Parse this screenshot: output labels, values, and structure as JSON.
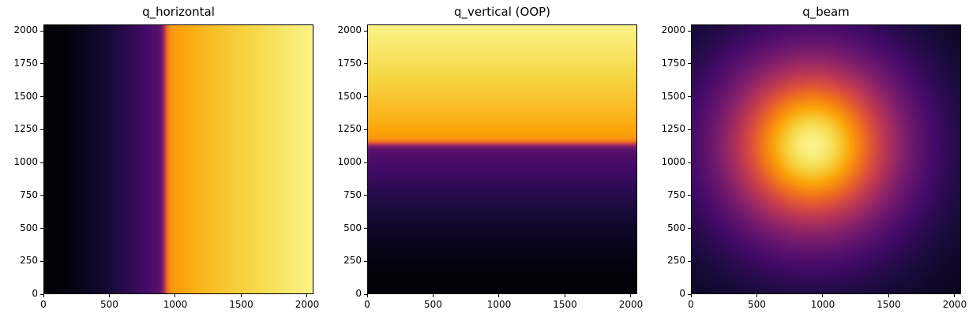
{
  "chart_data": [
    {
      "type": "heatmap",
      "title": "q_horizontal",
      "colormap": "inferno",
      "xlim": [
        0,
        2048
      ],
      "ylim": [
        0,
        2048
      ],
      "xticks": [
        0,
        500,
        1000,
        1500,
        2000
      ],
      "yticks": [
        0,
        250,
        500,
        750,
        1000,
        1250,
        1500,
        1750,
        2000
      ],
      "pattern": "increasing left to right, sharp step near x=920",
      "feature_x": 920
    },
    {
      "type": "heatmap",
      "title": "q_vertical (OOP)",
      "colormap": "inferno",
      "xlim": [
        0,
        2048
      ],
      "ylim": [
        0,
        2048
      ],
      "xticks": [
        0,
        500,
        1000,
        1500,
        2000
      ],
      "yticks": [
        0,
        250,
        500,
        750,
        1000,
        1250,
        1500,
        1750,
        2000
      ],
      "pattern": "increasing bottom to top, sharp step near y=1140",
      "feature_y": 1140
    },
    {
      "type": "heatmap",
      "title": "q_beam",
      "colormap": "inferno",
      "xlim": [
        0,
        2048
      ],
      "ylim": [
        0,
        2048
      ],
      "xticks": [
        0,
        500,
        1000,
        1500,
        2000
      ],
      "yticks": [
        0,
        250,
        500,
        750,
        1000,
        1250,
        1500,
        1750,
        2000
      ],
      "pattern": "radial, brightest at beam center",
      "beam_center": [
        920,
        1130
      ]
    }
  ]
}
